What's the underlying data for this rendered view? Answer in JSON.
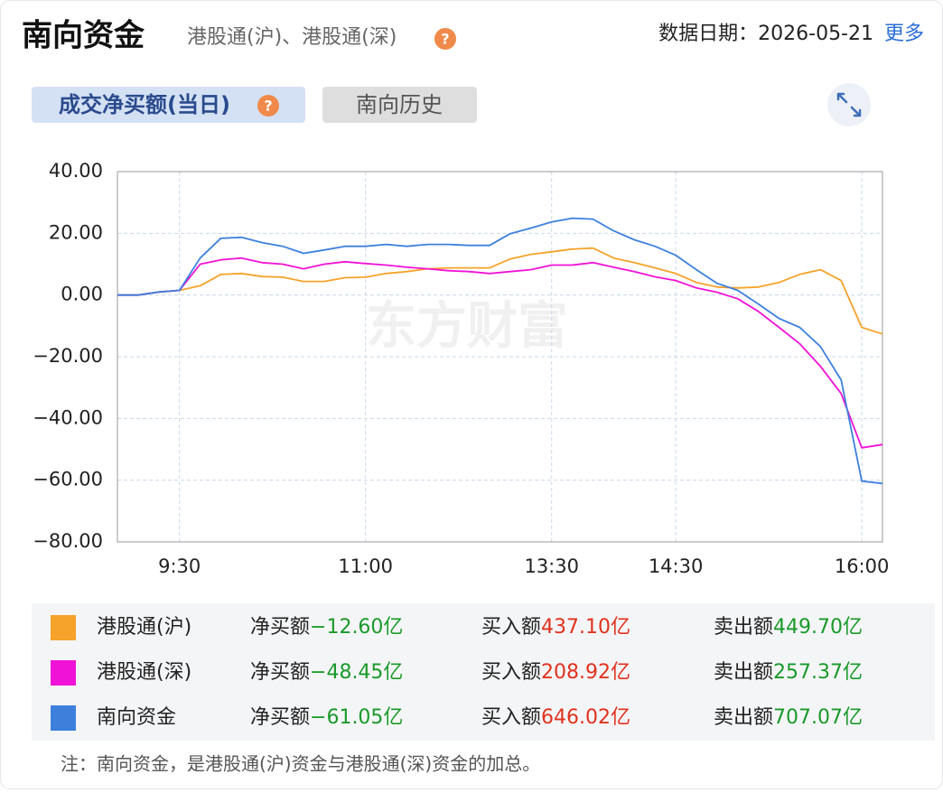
{
  "header": {
    "title": "南向资金",
    "subtitle": "港股通(沪)、港股通(深)",
    "help_icon": "?",
    "date": "数据日期：2026-05-21",
    "more": "更多"
  },
  "tabs": [
    "成交净买额(当日)",
    "南向历史"
  ],
  "watermark": "东方财富",
  "chart_data": {
    "type": "line",
    "categories": [
      null,
      null,
      null,
      "9:30",
      null,
      null,
      null,
      null,
      null,
      null,
      null,
      null,
      "11:00",
      null,
      null,
      null,
      null,
      null,
      null,
      null,
      null,
      "13:30",
      null,
      null,
      null,
      null,
      null,
      "14:30",
      null,
      null,
      null,
      null,
      null,
      null,
      null,
      null,
      "16:00",
      null
    ],
    "series": [
      {
        "name": "港股通(沪)",
        "color": "#f5a32a",
        "values": [
          0,
          0,
          1,
          1.5,
          3,
          6.7,
          7,
          6,
          5.8,
          4.4,
          4.4,
          5.6,
          5.8,
          7,
          7.6,
          8.5,
          8.8,
          8.8,
          8.8,
          11.7,
          13.2,
          14,
          14.9,
          15.2,
          12,
          10.5,
          8.8,
          7,
          4.1,
          2.6,
          2.3,
          2.6,
          4.1,
          6.7,
          8.2,
          4.7,
          -10.5,
          -12.6
        ]
      },
      {
        "name": "港股通(深)",
        "color": "#f012d6",
        "values": [
          0,
          0,
          1,
          1.5,
          10,
          11.4,
          12,
          10.5,
          10,
          8.5,
          10,
          10.8,
          10.2,
          9.7,
          9,
          8.5,
          7.9,
          7.6,
          7,
          7.6,
          8.2,
          9.7,
          9.7,
          10.5,
          9,
          7.6,
          5.9,
          4.7,
          2.3,
          0.9,
          -1.2,
          -5.3,
          -10.5,
          -15.8,
          -23.1,
          -31.9,
          -49.5,
          -48.45
        ]
      },
      {
        "name": "南向资金",
        "color": "#3d80dc",
        "values": [
          0,
          0,
          1,
          1.5,
          12,
          18.4,
          18.7,
          17,
          15.8,
          13.5,
          14.6,
          15.8,
          15.8,
          16.4,
          15.8,
          16.4,
          16.4,
          16.1,
          16.1,
          19.9,
          21.7,
          23.7,
          24.9,
          24.6,
          20.8,
          17.9,
          15.8,
          12.9,
          8.2,
          3.8,
          1.5,
          -2.9,
          -7.6,
          -10.5,
          -16.7,
          -27.5,
          -60.3,
          -61.05
        ]
      }
    ],
    "ylim": [
      -80,
      40
    ],
    "yticks": [
      {
        "value": -80,
        "label": "−80.00"
      },
      {
        "value": -60,
        "label": "−60.00"
      },
      {
        "value": -40,
        "label": "−40.00"
      },
      {
        "value": -20,
        "label": "−20.00"
      },
      {
        "value": 0,
        "label": "0.00"
      },
      {
        "value": 20,
        "label": "20.00"
      },
      {
        "value": 40,
        "label": "40.00"
      }
    ],
    "grid": true
  },
  "summary": {
    "net_label": "净买额",
    "buy_label": "买入额",
    "sell_label": "卖出额",
    "rows": [
      {
        "net": "−12.60亿",
        "buy": "437.10亿",
        "sell": "449.70亿"
      },
      {
        "net": "−48.45亿",
        "buy": "208.92亿",
        "sell": "257.37亿"
      },
      {
        "net": "−61.05亿",
        "buy": "646.02亿",
        "sell": "707.07亿"
      }
    ]
  },
  "note": "注：南向资金，是港股通(沪)资金与港股通(深)资金的加总。"
}
